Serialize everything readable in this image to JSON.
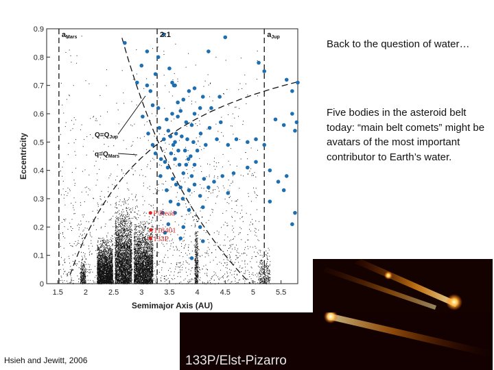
{
  "slide": {
    "heading": "Back to the question of water…",
    "body": "Five bodies in the asteroid belt today: “main belt comets” might be avatars of the most important contributor to Earth’s water.",
    "credit": "Hsieh and Jewitt, 2006"
  },
  "chart_data": {
    "type": "scatter",
    "xlabel": "Semimajor Axis (AU)",
    "ylabel": "Eccentricity",
    "xlim": [
      1.3,
      5.8
    ],
    "ylim": [
      0,
      0.9
    ],
    "xticks": [
      "1.5",
      "2",
      "2.5",
      "3",
      "3.5",
      "4",
      "4.5",
      "5",
      "5.5"
    ],
    "yticks": [
      "0",
      "0.1",
      "0.2",
      "0.3",
      "0.4",
      "0.5",
      "0.6",
      "0.7",
      "0.8",
      "0.9"
    ],
    "vertical_lines": [
      {
        "label_main": "a",
        "label_sub": "Mars",
        "x": 1.52
      },
      {
        "label_main": "2:1",
        "label_sub": "",
        "x": 3.28
      },
      {
        "label_main": "a",
        "label_sub": "Jup",
        "x": 5.2
      }
    ],
    "curve_labels": [
      {
        "main": "Q=Q",
        "sub": "Jup"
      },
      {
        "main": "q=Q",
        "sub": "Mars"
      }
    ],
    "highlighted": [
      {
        "name": "P/Read",
        "x": 3.16,
        "y": 0.25
      },
      {
        "name": "118401",
        "x": 3.17,
        "y": 0.19
      },
      {
        "name": "133P",
        "x": 3.16,
        "y": 0.16
      }
    ],
    "highlight_color": "#e02020",
    "comet_color": "#1f6fb0",
    "comets": [
      [
        2.7,
        0.85
      ],
      [
        3.4,
        0.88
      ],
      [
        3.1,
        0.82
      ],
      [
        3.3,
        0.8
      ],
      [
        4.2,
        0.82
      ],
      [
        4.5,
        0.87
      ],
      [
        5.1,
        0.78
      ],
      [
        3.5,
        0.76
      ],
      [
        3.25,
        0.74
      ],
      [
        5.2,
        0.75
      ],
      [
        3.0,
        0.77
      ],
      [
        2.92,
        0.71
      ],
      [
        3.1,
        0.7
      ],
      [
        3.16,
        0.68
      ],
      [
        3.55,
        0.71
      ],
      [
        3.58,
        0.7
      ],
      [
        3.6,
        0.7
      ],
      [
        3.85,
        0.68
      ],
      [
        3.95,
        0.69
      ],
      [
        4.1,
        0.66
      ],
      [
        4.25,
        0.62
      ],
      [
        3.2,
        0.63
      ],
      [
        3.3,
        0.62
      ],
      [
        3.45,
        0.58
      ],
      [
        3.55,
        0.6
      ],
      [
        3.65,
        0.59
      ],
      [
        3.7,
        0.61
      ],
      [
        3.8,
        0.57
      ],
      [
        3.9,
        0.56
      ],
      [
        3.95,
        0.6
      ],
      [
        4.05,
        0.62
      ],
      [
        3.02,
        0.59
      ],
      [
        3.12,
        0.53
      ],
      [
        3.32,
        0.55
      ],
      [
        3.4,
        0.51
      ],
      [
        3.48,
        0.54
      ],
      [
        3.52,
        0.52
      ],
      [
        3.57,
        0.49
      ],
      [
        3.6,
        0.5
      ],
      [
        3.62,
        0.53
      ],
      [
        3.66,
        0.47
      ],
      [
        3.72,
        0.52
      ],
      [
        3.78,
        0.47
      ],
      [
        3.82,
        0.51
      ],
      [
        3.88,
        0.45
      ],
      [
        3.93,
        0.5
      ],
      [
        4.0,
        0.47
      ],
      [
        4.06,
        0.53
      ],
      [
        4.15,
        0.49
      ],
      [
        4.22,
        0.55
      ],
      [
        4.35,
        0.51
      ],
      [
        4.42,
        0.57
      ],
      [
        4.55,
        0.49
      ],
      [
        4.7,
        0.51
      ],
      [
        4.9,
        0.5
      ],
      [
        5.05,
        0.51
      ],
      [
        5.2,
        0.49
      ],
      [
        5.4,
        0.58
      ],
      [
        5.55,
        0.56
      ],
      [
        5.7,
        0.6
      ],
      [
        5.75,
        0.54
      ],
      [
        3.25,
        0.46
      ],
      [
        3.35,
        0.44
      ],
      [
        3.42,
        0.43
      ],
      [
        3.47,
        0.41
      ],
      [
        3.53,
        0.46
      ],
      [
        3.6,
        0.44
      ],
      [
        3.68,
        0.42
      ],
      [
        3.75,
        0.39
      ],
      [
        3.8,
        0.42
      ],
      [
        3.84,
        0.44
      ],
      [
        3.9,
        0.38
      ],
      [
        3.95,
        0.42
      ],
      [
        3.56,
        0.37
      ],
      [
        3.62,
        0.35
      ],
      [
        3.7,
        0.34
      ],
      [
        3.74,
        0.3
      ],
      [
        3.45,
        0.33
      ],
      [
        3.52,
        0.29
      ],
      [
        3.85,
        0.33
      ],
      [
        3.95,
        0.35
      ],
      [
        4.05,
        0.31
      ],
      [
        4.12,
        0.37
      ],
      [
        4.2,
        0.34
      ],
      [
        4.3,
        0.36
      ],
      [
        4.45,
        0.38
      ],
      [
        4.55,
        0.32
      ],
      [
        4.65,
        0.39
      ],
      [
        4.9,
        0.41
      ],
      [
        5.05,
        0.43
      ],
      [
        5.3,
        0.4
      ],
      [
        5.45,
        0.36
      ],
      [
        5.6,
        0.38
      ],
      [
        5.7,
        0.21
      ],
      [
        4.1,
        0.27
      ],
      [
        4.05,
        0.2
      ],
      [
        4.1,
        0.15
      ],
      [
        3.75,
        0.2
      ],
      [
        3.7,
        0.16
      ],
      [
        3.9,
        0.09
      ],
      [
        3.85,
        0.26
      ],
      [
        5.3,
        0.29
      ],
      [
        5.55,
        0.33
      ],
      [
        5.75,
        0.25
      ],
      [
        5.85,
        0.57
      ],
      [
        5.7,
        0.68
      ],
      [
        5.6,
        0.72
      ],
      [
        5.8,
        0.71
      ],
      [
        3.65,
        0.64
      ],
      [
        3.75,
        0.65
      ],
      [
        4.4,
        0.66
      ],
      [
        3.2,
        0.49
      ],
      [
        3.34,
        0.38
      ],
      [
        3.38,
        0.25
      ],
      [
        3.42,
        0.18
      ],
      [
        3.48,
        0.21
      ],
      [
        3.6,
        0.25
      ],
      [
        3.66,
        0.28
      ]
    ]
  },
  "photos": {
    "top_alt": "Comet image with two bright tails",
    "bottom_label": "133P/Elst-Pizarro"
  }
}
